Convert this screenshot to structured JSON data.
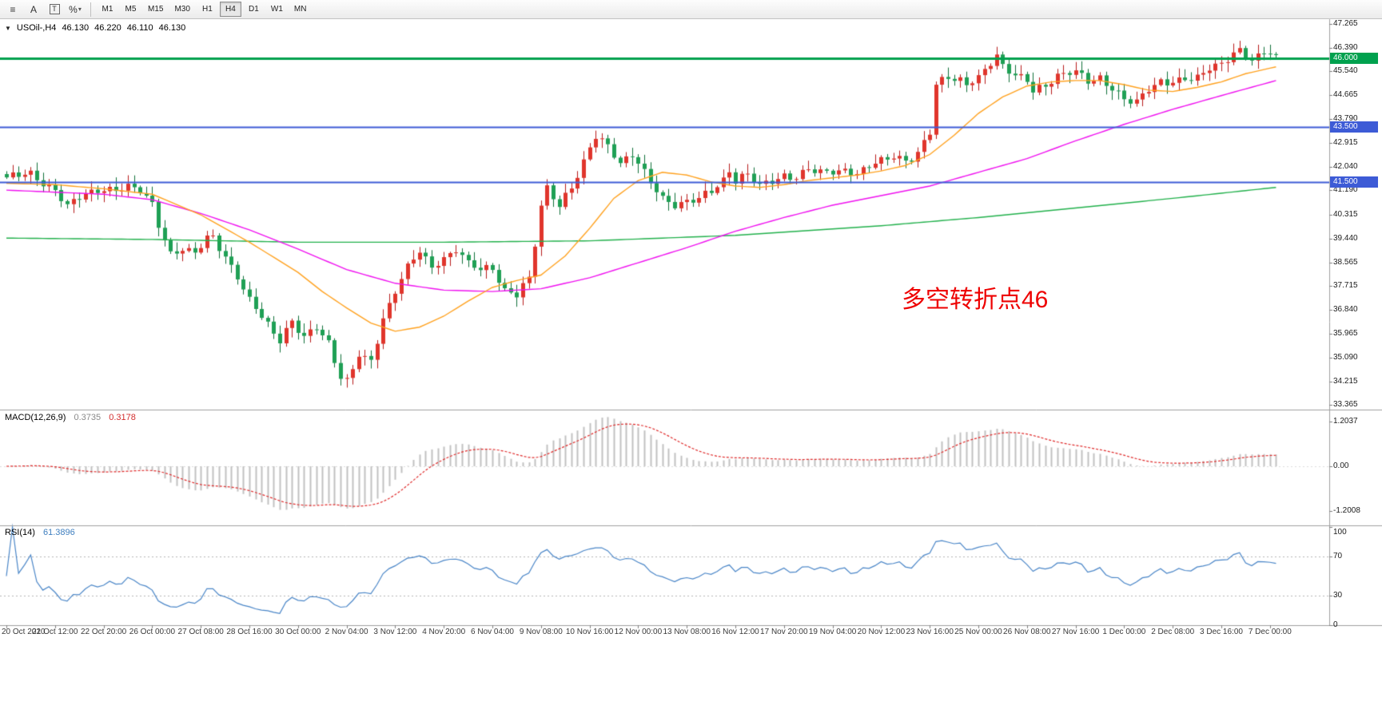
{
  "toolbar": {
    "tools": [
      {
        "name": "line-tools",
        "glyph": "≡"
      },
      {
        "name": "text-tool",
        "glyph": "A"
      },
      {
        "name": "label-tool",
        "glyph": "T",
        "boxed": true
      },
      {
        "name": "fibonacci-tool",
        "glyph": "%",
        "caret": true
      }
    ],
    "timeframes": [
      "M1",
      "M5",
      "M15",
      "M30",
      "H1",
      "H4",
      "D1",
      "W1",
      "MN"
    ],
    "active_timeframe": "H4"
  },
  "quote_bar": {
    "symbol": "USOil-,H4",
    "open": "46.130",
    "high": "46.220",
    "low": "46.110",
    "close": "46.130"
  },
  "annotation": {
    "text": "多空转折点46",
    "color": "#ee0000"
  },
  "indicators": {
    "macd": {
      "label": "MACD(12,26,9)",
      "main": "0.3735",
      "signal": "0.3178",
      "axis": [
        "1.2037",
        "0.00",
        "-1.2008"
      ]
    },
    "rsi": {
      "label": "RSI(14)",
      "value": "61.3896",
      "axis": [
        "100",
        "70",
        "30",
        "0"
      ]
    }
  },
  "price_axis": {
    "ticks": [
      "47.265",
      "46.390",
      "45.540",
      "44.665",
      "43.790",
      "42.915",
      "42.040",
      "41.190",
      "40.315",
      "39.440",
      "38.565",
      "37.715",
      "36.840",
      "35.965",
      "35.090",
      "34.215",
      "33.365"
    ],
    "badges": [
      {
        "label": "46.000",
        "value": 46.0,
        "color": "#00a14e"
      },
      {
        "label": "43.500",
        "value": 43.5,
        "color": "#3d5bd6"
      },
      {
        "label": "41.500",
        "value": 41.5,
        "color": "#3d5bd6"
      }
    ]
  },
  "time_axis": {
    "labels": [
      {
        "bar": 0,
        "text": "20 Oct 2020"
      },
      {
        "bar": 8,
        "text": "21 Oct 12:00"
      },
      {
        "bar": 16,
        "text": "22 Oct 20:00"
      },
      {
        "bar": 24,
        "text": "26 Oct 00:00"
      },
      {
        "bar": 32,
        "text": "27 Oct 08:00"
      },
      {
        "bar": 40,
        "text": "28 Oct 16:00"
      },
      {
        "bar": 48,
        "text": "30 Oct 00:00"
      },
      {
        "bar": 56,
        "text": "2 Nov 04:00"
      },
      {
        "bar": 64,
        "text": "3 Nov 12:00"
      },
      {
        "bar": 72,
        "text": "4 Nov 20:00"
      },
      {
        "bar": 80,
        "text": "6 Nov 04:00"
      },
      {
        "bar": 88,
        "text": "9 Nov 08:00"
      },
      {
        "bar": 96,
        "text": "10 Nov 16:00"
      },
      {
        "bar": 104,
        "text": "12 Nov 00:00"
      },
      {
        "bar": 112,
        "text": "13 Nov 08:00"
      },
      {
        "bar": 120,
        "text": "16 Nov 12:00"
      },
      {
        "bar": 128,
        "text": "17 Nov 20:00"
      },
      {
        "bar": 136,
        "text": "19 Nov 04:00"
      },
      {
        "bar": 144,
        "text": "20 Nov 12:00"
      },
      {
        "bar": 152,
        "text": "23 Nov 16:00"
      },
      {
        "bar": 160,
        "text": "25 Nov 00:00"
      },
      {
        "bar": 168,
        "text": "26 Nov 08:00"
      },
      {
        "bar": 176,
        "text": "27 Nov 16:00"
      },
      {
        "bar": 184,
        "text": "1 Dec 00:00"
      },
      {
        "bar": 192,
        "text": "2 Dec 08:00"
      },
      {
        "bar": 200,
        "text": "3 Dec 16:00"
      },
      {
        "bar": 208,
        "text": "7 Dec 00:00"
      }
    ]
  },
  "chart_data": {
    "type": "candlestick",
    "symbol": "USOil",
    "timeframe": "H4",
    "bars": 210,
    "price_range": [
      33.19,
      47.44
    ],
    "close_path": [
      [
        0,
        41.6
      ],
      [
        4,
        41.85
      ],
      [
        8,
        41.2
      ],
      [
        10,
        40.55
      ],
      [
        13,
        41.0
      ],
      [
        16,
        41.3
      ],
      [
        20,
        41.3
      ],
      [
        22,
        41.1
      ],
      [
        24,
        40.6
      ],
      [
        25,
        39.9
      ],
      [
        27,
        38.95
      ],
      [
        29,
        39.1
      ],
      [
        31,
        38.9
      ],
      [
        33,
        39.35
      ],
      [
        34,
        39.4
      ],
      [
        36,
        38.7
      ],
      [
        38,
        38.1
      ],
      [
        40,
        37.3
      ],
      [
        42,
        36.6
      ],
      [
        44,
        35.9
      ],
      [
        45,
        35.6
      ],
      [
        47,
        36.4
      ],
      [
        49,
        35.9
      ],
      [
        51,
        36.3
      ],
      [
        53,
        35.6
      ],
      [
        54,
        34.9
      ],
      [
        55,
        34.3
      ],
      [
        56,
        34.15
      ],
      [
        57,
        34.6
      ],
      [
        58,
        35.2
      ],
      [
        60,
        35.05
      ],
      [
        62,
        36.6
      ],
      [
        64,
        37.5
      ],
      [
        66,
        38.3
      ],
      [
        68,
        38.9
      ],
      [
        70,
        38.4
      ],
      [
        72,
        38.8
      ],
      [
        74,
        39.1
      ],
      [
        76,
        38.5
      ],
      [
        78,
        38.2
      ],
      [
        80,
        38.3
      ],
      [
        82,
        37.6
      ],
      [
        84,
        37.5
      ],
      [
        86,
        38.0
      ],
      [
        87,
        39.2
      ],
      [
        88,
        40.5
      ],
      [
        89,
        41.2
      ],
      [
        91,
        40.6
      ],
      [
        93,
        41.4
      ],
      [
        95,
        42.3
      ],
      [
        96,
        42.8
      ],
      [
        97,
        43.2
      ],
      [
        99,
        42.7
      ],
      [
        101,
        42.1
      ],
      [
        103,
        42.5
      ],
      [
        104,
        42.3
      ],
      [
        106,
        41.6
      ],
      [
        108,
        40.9
      ],
      [
        110,
        40.55
      ],
      [
        112,
        40.7
      ],
      [
        114,
        40.95
      ],
      [
        116,
        41.3
      ],
      [
        118,
        41.6
      ],
      [
        119,
        41.9
      ],
      [
        120,
        41.5
      ],
      [
        122,
        41.7
      ],
      [
        124,
        41.35
      ],
      [
        126,
        41.6
      ],
      [
        128,
        41.8
      ],
      [
        130,
        41.65
      ],
      [
        132,
        41.9
      ],
      [
        134,
        41.8
      ],
      [
        136,
        41.9
      ],
      [
        138,
        42.0
      ],
      [
        140,
        41.85
      ],
      [
        142,
        42.05
      ],
      [
        144,
        42.2
      ],
      [
        146,
        42.4
      ],
      [
        148,
        42.3
      ],
      [
        150,
        42.6
      ],
      [
        152,
        43.35
      ],
      [
        153,
        45.0
      ],
      [
        155,
        45.25
      ],
      [
        158,
        45.1
      ],
      [
        160,
        45.4
      ],
      [
        162,
        45.9
      ],
      [
        163,
        46.1
      ],
      [
        164,
        45.7
      ],
      [
        166,
        45.3
      ],
      [
        168,
        45.2
      ],
      [
        169,
        44.85
      ],
      [
        171,
        45.1
      ],
      [
        173,
        45.4
      ],
      [
        175,
        45.5
      ],
      [
        176,
        45.45
      ],
      [
        178,
        45.1
      ],
      [
        180,
        45.3
      ],
      [
        182,
        45.0
      ],
      [
        184,
        44.6
      ],
      [
        186,
        44.35
      ],
      [
        188,
        44.8
      ],
      [
        190,
        45.1
      ],
      [
        192,
        45.2
      ],
      [
        194,
        45.4
      ],
      [
        196,
        45.3
      ],
      [
        198,
        45.6
      ],
      [
        200,
        45.7
      ],
      [
        202,
        46.2
      ],
      [
        203,
        46.35
      ],
      [
        205,
        46.05
      ],
      [
        207,
        46.25
      ],
      [
        209,
        46.13
      ]
    ],
    "ma_fast_orange": [
      [
        0,
        41.45
      ],
      [
        8,
        41.4
      ],
      [
        16,
        41.25
      ],
      [
        24,
        41.05
      ],
      [
        32,
        40.3
      ],
      [
        40,
        39.3
      ],
      [
        48,
        38.2
      ],
      [
        52,
        37.5
      ],
      [
        56,
        36.9
      ],
      [
        60,
        36.35
      ],
      [
        64,
        36.05
      ],
      [
        68,
        36.2
      ],
      [
        72,
        36.6
      ],
      [
        76,
        37.15
      ],
      [
        80,
        37.65
      ],
      [
        84,
        37.9
      ],
      [
        88,
        38.1
      ],
      [
        92,
        38.8
      ],
      [
        96,
        39.8
      ],
      [
        100,
        40.9
      ],
      [
        104,
        41.55
      ],
      [
        108,
        41.85
      ],
      [
        112,
        41.75
      ],
      [
        116,
        41.5
      ],
      [
        120,
        41.35
      ],
      [
        124,
        41.3
      ],
      [
        128,
        41.4
      ],
      [
        132,
        41.55
      ],
      [
        136,
        41.65
      ],
      [
        140,
        41.75
      ],
      [
        144,
        41.9
      ],
      [
        148,
        42.1
      ],
      [
        152,
        42.5
      ],
      [
        156,
        43.2
      ],
      [
        160,
        44.0
      ],
      [
        164,
        44.6
      ],
      [
        168,
        45.0
      ],
      [
        172,
        45.15
      ],
      [
        176,
        45.2
      ],
      [
        180,
        45.2
      ],
      [
        184,
        45.05
      ],
      [
        188,
        44.85
      ],
      [
        192,
        44.8
      ],
      [
        196,
        44.95
      ],
      [
        200,
        45.15
      ],
      [
        204,
        45.45
      ],
      [
        209,
        45.7
      ]
    ],
    "ma_mid_magenta": [
      [
        0,
        41.2
      ],
      [
        16,
        41.05
      ],
      [
        24,
        40.85
      ],
      [
        32,
        40.35
      ],
      [
        40,
        39.75
      ],
      [
        48,
        39.05
      ],
      [
        56,
        38.3
      ],
      [
        64,
        37.8
      ],
      [
        72,
        37.55
      ],
      [
        80,
        37.5
      ],
      [
        88,
        37.6
      ],
      [
        96,
        38.0
      ],
      [
        104,
        38.55
      ],
      [
        112,
        39.1
      ],
      [
        120,
        39.7
      ],
      [
        128,
        40.2
      ],
      [
        136,
        40.65
      ],
      [
        144,
        41.0
      ],
      [
        152,
        41.35
      ],
      [
        160,
        41.85
      ],
      [
        168,
        42.35
      ],
      [
        176,
        43.0
      ],
      [
        184,
        43.6
      ],
      [
        192,
        44.15
      ],
      [
        200,
        44.65
      ],
      [
        209,
        45.2
      ]
    ],
    "ma_slow_green": [
      [
        0,
        39.45
      ],
      [
        24,
        39.4
      ],
      [
        48,
        39.3
      ],
      [
        72,
        39.3
      ],
      [
        96,
        39.35
      ],
      [
        120,
        39.55
      ],
      [
        144,
        39.9
      ],
      [
        160,
        40.2
      ],
      [
        176,
        40.55
      ],
      [
        192,
        40.9
      ],
      [
        209,
        41.3
      ]
    ],
    "hlines": [
      {
        "value": 46.0,
        "color": "#00a14e",
        "width": 3
      },
      {
        "value": 43.5,
        "color": "#3d5bd6",
        "width": 2
      },
      {
        "value": 41.5,
        "color": "#3d5bd6",
        "width": 2
      }
    ],
    "macd": {
      "fast": 12,
      "slow": 26,
      "signal": 9,
      "scale_max": 1.45,
      "histogram_color": "#c2c2c2",
      "signal_color": "#e02b2b"
    },
    "rsi": {
      "period": 14,
      "range": [
        0,
        100
      ],
      "levels": [
        70,
        30
      ],
      "line_color": "#4a86c8"
    },
    "bull_color": "#e0352c",
    "bull_border": "#b71c1c",
    "bear_color": "#1fa055",
    "bear_border": "#11713a",
    "wiggle": 0.12
  }
}
